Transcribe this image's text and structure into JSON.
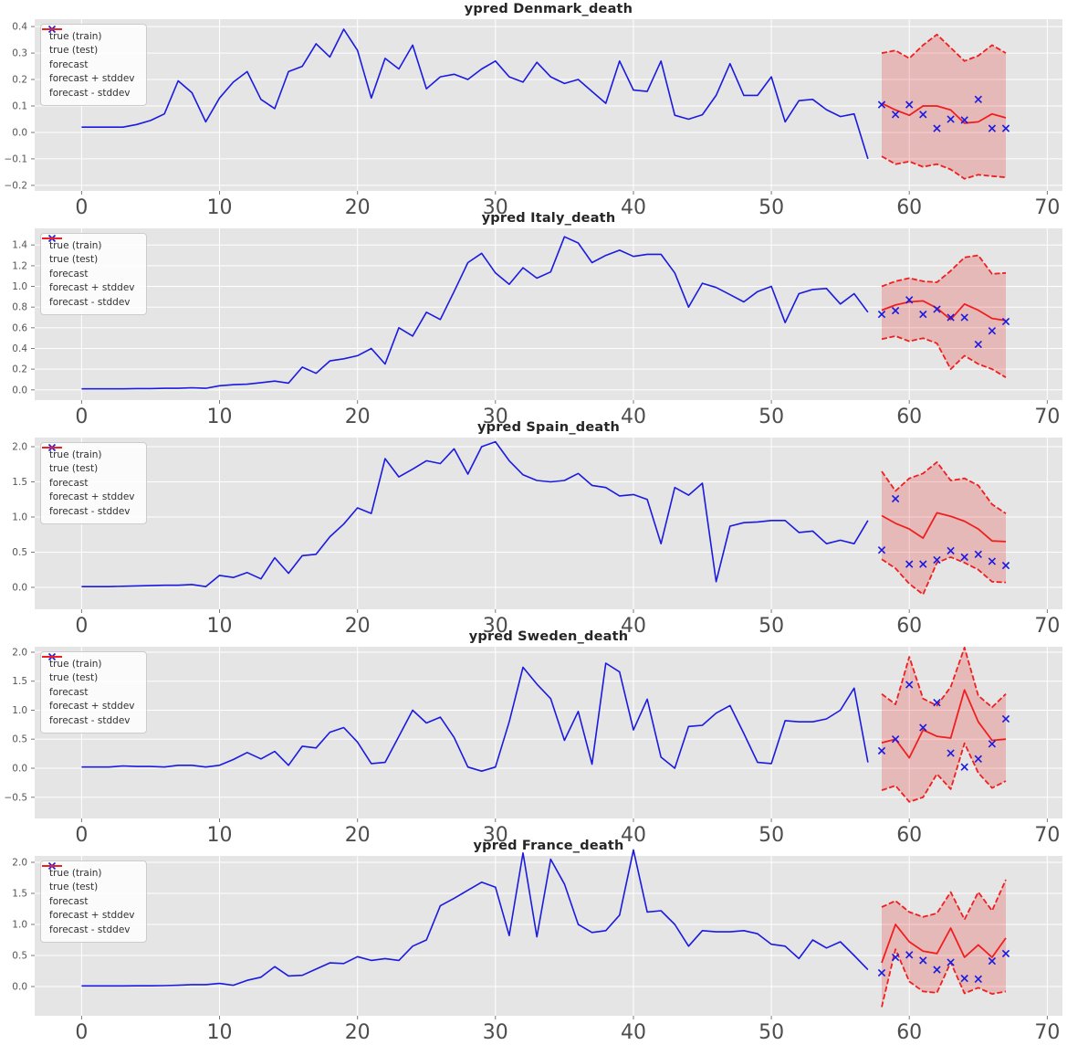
{
  "style": {
    "figure_bg": "#ffffff",
    "axes_bg": "#e5e5e5",
    "grid_color": "#ffffff",
    "train_color": "#1a1ae0",
    "test_color": "#1a1ae0",
    "forecast_color": "#ef1f1f",
    "band_fill": "rgba(239,31,31,0.22)",
    "xtick_label_color": "#4d4d4d",
    "ytick_label_color": "#555555",
    "tick_mark_color": "#7a7a7a",
    "title_color": "#262626"
  },
  "legend": {
    "items": [
      {
        "label": "true (train)",
        "swatch": "blue-line"
      },
      {
        "label": "true (test)",
        "swatch": "blue-x"
      },
      {
        "label": "forecast",
        "swatch": "red-line"
      },
      {
        "label": "forecast + stddev",
        "swatch": "red-dashed"
      },
      {
        "label": "forecast - stddev",
        "swatch": "red-dashed"
      }
    ]
  },
  "chart_data": [
    {
      "type": "line",
      "title": "ypred Denmark_death",
      "xlabel": "",
      "ylabel": "",
      "grid": true,
      "legend_position": "upper-left",
      "xlim": [
        -3.4,
        71.1
      ],
      "ylim": [
        -0.221,
        0.428
      ],
      "xticks": [
        0,
        10,
        20,
        30,
        40,
        50,
        60,
        70
      ],
      "xtick_labels": [
        "0",
        "10",
        "20",
        "30",
        "40",
        "50",
        "60",
        "70"
      ],
      "yticks": [
        -0.2,
        -0.1,
        0.0,
        0.1,
        0.2,
        0.3,
        0.4
      ],
      "ytick_labels": [
        "−0.2",
        "−0.1",
        "0.0",
        "0.1",
        "0.2",
        "0.3",
        "0.4"
      ],
      "forecast_x_start": 58,
      "series": [
        {
          "name": "true (train)",
          "x_start": 0,
          "values": [
            0.02,
            0.02,
            0.02,
            0.02,
            0.03,
            0.045,
            0.07,
            0.195,
            0.15,
            0.04,
            0.13,
            0.19,
            0.23,
            0.125,
            0.09,
            0.23,
            0.25,
            0.335,
            0.285,
            0.39,
            0.31,
            0.13,
            0.28,
            0.24,
            0.33,
            0.165,
            0.21,
            0.22,
            0.2,
            0.24,
            0.27,
            0.21,
            0.19,
            0.265,
            0.21,
            0.185,
            0.2,
            0.155,
            0.11,
            0.27,
            0.16,
            0.155,
            0.27,
            0.065,
            0.05,
            0.067,
            0.14,
            0.26,
            0.14,
            0.14,
            0.21,
            0.04,
            0.12,
            0.125,
            0.086,
            0.06,
            0.07,
            -0.1
          ]
        },
        {
          "name": "true (test)",
          "x_start": 58,
          "values": [
            0.105,
            0.068,
            0.105,
            0.068,
            0.015,
            0.05,
            0.047,
            0.125,
            0.015,
            0.015
          ]
        },
        {
          "name": "forecast",
          "x_start": 58,
          "values": [
            0.11,
            0.085,
            0.065,
            0.1,
            0.1,
            0.085,
            0.035,
            0.04,
            0.07,
            0.055
          ]
        },
        {
          "name": "forecast + stddev",
          "x_start": 58,
          "values": [
            0.3,
            0.31,
            0.28,
            0.33,
            0.37,
            0.32,
            0.27,
            0.29,
            0.33,
            0.3
          ]
        },
        {
          "name": "forecast - stddev",
          "x_start": 58,
          "values": [
            -0.09,
            -0.12,
            -0.11,
            -0.13,
            -0.12,
            -0.14,
            -0.175,
            -0.16,
            -0.165,
            -0.17
          ]
        }
      ]
    },
    {
      "type": "line",
      "title": "ypred Italy_death",
      "xlabel": "",
      "ylabel": "",
      "grid": true,
      "legend_position": "upper-left",
      "xlim": [
        -3.4,
        71.1
      ],
      "ylim": [
        -0.099,
        1.561
      ],
      "xticks": [
        0,
        10,
        20,
        30,
        40,
        50,
        60,
        70
      ],
      "xtick_labels": [
        "0",
        "10",
        "20",
        "30",
        "40",
        "50",
        "60",
        "70"
      ],
      "yticks": [
        0.0,
        0.2,
        0.4,
        0.6,
        0.8,
        1.0,
        1.2,
        1.4
      ],
      "ytick_labels": [
        "0.0",
        "0.2",
        "0.4",
        "0.6",
        "0.8",
        "1.0",
        "1.2",
        "1.4"
      ],
      "forecast_x_start": 58,
      "series": [
        {
          "name": "true (train)",
          "x_start": 0,
          "values": [
            0.01,
            0.01,
            0.01,
            0.01,
            0.012,
            0.012,
            0.015,
            0.015,
            0.02,
            0.015,
            0.04,
            0.05,
            0.055,
            0.07,
            0.085,
            0.065,
            0.22,
            0.16,
            0.28,
            0.3,
            0.33,
            0.4,
            0.25,
            0.6,
            0.52,
            0.75,
            0.68,
            0.95,
            1.23,
            1.32,
            1.13,
            1.02,
            1.18,
            1.08,
            1.14,
            1.48,
            1.42,
            1.23,
            1.3,
            1.35,
            1.29,
            1.31,
            1.31,
            1.13,
            0.8,
            1.03,
            0.99,
            0.92,
            0.85,
            0.95,
            1.0,
            0.65,
            0.93,
            0.97,
            0.98,
            0.83,
            0.93,
            0.75
          ]
        },
        {
          "name": "true (test)",
          "x_start": 58,
          "values": [
            0.73,
            0.765,
            0.87,
            0.73,
            0.78,
            0.7,
            0.7,
            0.44,
            0.57,
            0.66
          ]
        },
        {
          "name": "forecast",
          "x_start": 58,
          "values": [
            0.77,
            0.82,
            0.85,
            0.86,
            0.79,
            0.68,
            0.83,
            0.77,
            0.69,
            0.67
          ]
        },
        {
          "name": "forecast + stddev",
          "x_start": 58,
          "values": [
            1.0,
            1.05,
            1.08,
            1.05,
            1.04,
            1.15,
            1.28,
            1.3,
            1.12,
            1.13
          ]
        },
        {
          "name": "forecast - stddev",
          "x_start": 58,
          "values": [
            0.49,
            0.52,
            0.47,
            0.5,
            0.45,
            0.2,
            0.33,
            0.25,
            0.2,
            0.12
          ]
        }
      ]
    },
    {
      "type": "line",
      "title": "ypred Spain_death",
      "xlabel": "",
      "ylabel": "",
      "grid": true,
      "legend_position": "upper-left",
      "xlim": [
        -3.4,
        71.1
      ],
      "ylim": [
        -0.312,
        2.13
      ],
      "xticks": [
        0,
        10,
        20,
        30,
        40,
        50,
        60,
        70
      ],
      "xtick_labels": [
        "0",
        "10",
        "20",
        "30",
        "40",
        "50",
        "60",
        "70"
      ],
      "yticks": [
        0.0,
        0.5,
        1.0,
        1.5,
        2.0
      ],
      "ytick_labels": [
        "0.0",
        "0.5",
        "1.0",
        "1.5",
        "2.0"
      ],
      "forecast_x_start": 58,
      "series": [
        {
          "name": "true (train)",
          "x_start": 0,
          "values": [
            0.01,
            0.01,
            0.01,
            0.015,
            0.02,
            0.025,
            0.03,
            0.03,
            0.04,
            0.01,
            0.17,
            0.14,
            0.21,
            0.12,
            0.42,
            0.2,
            0.45,
            0.47,
            0.72,
            0.9,
            1.13,
            1.05,
            1.83,
            1.57,
            1.68,
            1.8,
            1.76,
            1.97,
            1.61,
            2.0,
            2.07,
            1.8,
            1.6,
            1.52,
            1.5,
            1.52,
            1.62,
            1.45,
            1.42,
            1.3,
            1.32,
            1.25,
            0.62,
            1.42,
            1.31,
            1.48,
            0.08,
            0.87,
            0.92,
            0.93,
            0.95,
            0.95,
            0.78,
            0.8,
            0.62,
            0.67,
            0.62,
            0.95
          ]
        },
        {
          "name": "true (test)",
          "x_start": 58,
          "values": [
            0.53,
            1.26,
            0.33,
            0.33,
            0.39,
            0.52,
            0.43,
            0.47,
            0.37,
            0.31
          ]
        },
        {
          "name": "forecast",
          "x_start": 58,
          "values": [
            1.02,
            0.91,
            0.83,
            0.7,
            1.06,
            1.01,
            0.94,
            0.83,
            0.66,
            0.65
          ]
        },
        {
          "name": "forecast + stddev",
          "x_start": 58,
          "values": [
            1.65,
            1.37,
            1.55,
            1.62,
            1.78,
            1.52,
            1.55,
            1.45,
            1.18,
            1.05
          ]
        },
        {
          "name": "forecast - stddev",
          "x_start": 58,
          "values": [
            0.4,
            0.27,
            0.05,
            -0.1,
            0.35,
            0.43,
            0.35,
            0.25,
            0.08,
            0.07
          ]
        }
      ]
    },
    {
      "type": "line",
      "title": "ypred Sweden_death",
      "xlabel": "",
      "ylabel": "",
      "grid": true,
      "legend_position": "upper-left",
      "xlim": [
        -3.4,
        71.1
      ],
      "ylim": [
        -0.866,
        2.094
      ],
      "xticks": [
        0,
        10,
        20,
        30,
        40,
        50,
        60,
        70
      ],
      "xtick_labels": [
        "0",
        "10",
        "20",
        "30",
        "40",
        "50",
        "60",
        "70"
      ],
      "yticks": [
        -0.5,
        0.0,
        0.5,
        1.0,
        1.5,
        2.0
      ],
      "ytick_labels": [
        "−0.5",
        "0.0",
        "0.5",
        "1.0",
        "1.5",
        "2.0"
      ],
      "forecast_x_start": 58,
      "series": [
        {
          "name": "true (train)",
          "x_start": 0,
          "values": [
            0.02,
            0.02,
            0.02,
            0.04,
            0.03,
            0.03,
            0.02,
            0.05,
            0.05,
            0.02,
            0.05,
            0.15,
            0.27,
            0.16,
            0.29,
            0.05,
            0.38,
            0.35,
            0.62,
            0.7,
            0.45,
            0.08,
            0.1,
            0.55,
            1.0,
            0.78,
            0.88,
            0.53,
            0.02,
            -0.05,
            0.02,
            0.8,
            1.74,
            1.45,
            1.2,
            0.48,
            0.98,
            0.07,
            1.81,
            1.66,
            0.66,
            1.19,
            0.19,
            0.0,
            0.72,
            0.74,
            0.95,
            1.08,
            0.6,
            0.1,
            0.08,
            0.82,
            0.8,
            0.8,
            0.85,
            1.0,
            1.38,
            0.1
          ]
        },
        {
          "name": "true (test)",
          "x_start": 58,
          "values": [
            0.3,
            0.5,
            1.44,
            0.7,
            1.13,
            0.26,
            0.02,
            0.16,
            0.42,
            0.85
          ]
        },
        {
          "name": "forecast",
          "x_start": 58,
          "values": [
            0.44,
            0.5,
            0.18,
            0.66,
            0.55,
            0.52,
            1.35,
            0.8,
            0.48,
            0.5
          ]
        },
        {
          "name": "forecast + stddev",
          "x_start": 58,
          "values": [
            1.28,
            1.1,
            1.92,
            1.2,
            1.08,
            1.4,
            2.08,
            1.25,
            1.05,
            1.28
          ]
        },
        {
          "name": "forecast - stddev",
          "x_start": 58,
          "values": [
            -0.38,
            -0.3,
            -0.58,
            -0.5,
            -0.1,
            -0.36,
            0.43,
            -0.08,
            -0.34,
            -0.22
          ]
        }
      ]
    },
    {
      "type": "line",
      "title": "ypred France_death",
      "xlabel": "",
      "ylabel": "",
      "grid": true,
      "legend_position": "upper-left",
      "xlim": [
        -3.4,
        71.1
      ],
      "ylim": [
        -0.471,
        2.103
      ],
      "xticks": [
        0,
        10,
        20,
        30,
        40,
        50,
        60,
        70
      ],
      "xtick_labels": [
        "0",
        "10",
        "20",
        "30",
        "40",
        "50",
        "60",
        "70"
      ],
      "yticks": [
        0.0,
        0.5,
        1.0,
        1.5,
        2.0
      ],
      "ytick_labels": [
        "0.0",
        "0.5",
        "1.0",
        "1.5",
        "2.0"
      ],
      "forecast_x_start": 58,
      "series": [
        {
          "name": "true (train)",
          "x_start": 0,
          "values": [
            0.01,
            0.01,
            0.01,
            0.01,
            0.012,
            0.012,
            0.015,
            0.02,
            0.03,
            0.03,
            0.05,
            0.02,
            0.1,
            0.15,
            0.32,
            0.17,
            0.18,
            0.28,
            0.38,
            0.37,
            0.48,
            0.42,
            0.45,
            0.42,
            0.65,
            0.75,
            1.3,
            1.42,
            1.55,
            1.68,
            1.6,
            0.82,
            2.15,
            0.8,
            2.05,
            1.65,
            1.0,
            0.87,
            0.9,
            1.15,
            2.2,
            1.2,
            1.22,
            1.0,
            0.65,
            0.9,
            0.88,
            0.88,
            0.9,
            0.85,
            0.68,
            0.65,
            0.45,
            0.75,
            0.62,
            0.72,
            0.5,
            0.27
          ]
        },
        {
          "name": "true (test)",
          "x_start": 58,
          "values": [
            0.22,
            0.47,
            0.51,
            0.42,
            0.27,
            0.39,
            0.13,
            0.12,
            0.41,
            0.53
          ]
        },
        {
          "name": "forecast",
          "x_start": 58,
          "values": [
            0.38,
            1.0,
            0.72,
            0.57,
            0.53,
            0.94,
            0.47,
            0.67,
            0.47,
            0.78
          ]
        },
        {
          "name": "forecast + stddev",
          "x_start": 58,
          "values": [
            1.28,
            1.38,
            1.2,
            1.12,
            1.18,
            1.52,
            1.08,
            1.52,
            1.22,
            1.72
          ]
        },
        {
          "name": "forecast - stddev",
          "x_start": 58,
          "values": [
            -0.33,
            0.6,
            0.08,
            -0.08,
            -0.1,
            0.39,
            -0.11,
            -0.02,
            -0.12,
            -0.08
          ]
        }
      ]
    }
  ]
}
